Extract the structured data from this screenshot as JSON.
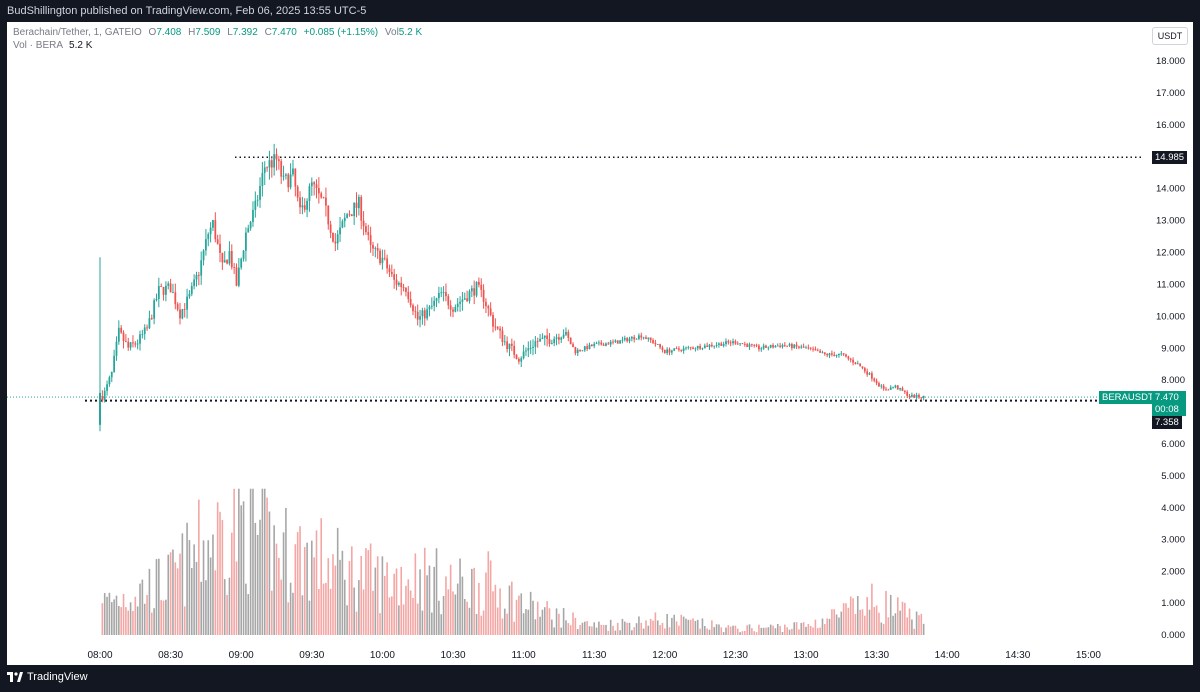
{
  "header": {
    "published_text": "BudShillington published on TradingView.com, Feb 06, 2025 13:55 UTC-5"
  },
  "legend": {
    "symbol": "Berachain/Tether, 1, GATEIO",
    "o_label": "O",
    "o": "7.408",
    "h_label": "H",
    "h": "7.509",
    "l_label": "L",
    "l": "7.392",
    "c_label": "C",
    "c": "7.470",
    "change": "+0.085 (+1.15%)",
    "vol_label": "Vol",
    "vol": "5.2 K",
    "vol_row_label": "Vol · BERA",
    "vol_row_value": "5.2 K"
  },
  "currency_button": "USDT",
  "price_tags": {
    "high_line": "14.985",
    "symbol_tag": "BERAUSDT",
    "last_price": "7.470",
    "countdown": "00:08",
    "low_line": "7.358"
  },
  "footer": {
    "brand": "TradingView"
  },
  "colors": {
    "up": "#26a69a",
    "down": "#ef5350",
    "up_vol": "#a6a6a6",
    "down_vol": "#f3a6a4",
    "background": "#ffffff",
    "tag_green": "#089981"
  },
  "chart_data": {
    "type": "candlestick",
    "price_axis_ticks": [
      "18.000",
      "17.000",
      "16.000",
      "15.000",
      "14.000",
      "13.000",
      "12.000",
      "11.000",
      "10.000",
      "9.000",
      "8.000",
      "7.000",
      "6.000"
    ],
    "volume_axis_ticks": [
      "5.000",
      "4.000",
      "3.000",
      "2.000",
      "1.000",
      "0.000"
    ],
    "x_ticks": [
      "08:00",
      "08:30",
      "09:00",
      "09:30",
      "10:00",
      "10:30",
      "11:00",
      "11:30",
      "12:00",
      "12:30",
      "13:00",
      "13:30",
      "14:00",
      "14:30",
      "15:00"
    ],
    "ylim": [
      6.0,
      18.0
    ],
    "volume_ylim": [
      0,
      5.0
    ],
    "horizontal_lines": [
      14.985,
      7.358
    ],
    "last_price": 7.47,
    "price_path": [
      {
        "t": "08:00",
        "p": 7.4
      },
      {
        "t": "08:02",
        "p": 7.6
      },
      {
        "t": "08:05",
        "p": 8.2
      },
      {
        "t": "08:08",
        "p": 9.5
      },
      {
        "t": "08:12",
        "p": 9.0
      },
      {
        "t": "08:16",
        "p": 9.2
      },
      {
        "t": "08:20",
        "p": 9.6
      },
      {
        "t": "08:25",
        "p": 10.8
      },
      {
        "t": "08:30",
        "p": 10.9
      },
      {
        "t": "08:34",
        "p": 10.1
      },
      {
        "t": "08:38",
        "p": 10.6
      },
      {
        "t": "08:42",
        "p": 11.4
      },
      {
        "t": "08:46",
        "p": 12.6
      },
      {
        "t": "08:48",
        "p": 12.9
      },
      {
        "t": "08:52",
        "p": 11.5
      },
      {
        "t": "08:55",
        "p": 12.0
      },
      {
        "t": "08:58",
        "p": 11.0
      },
      {
        "t": "09:02",
        "p": 12.6
      },
      {
        "t": "09:06",
        "p": 13.4
      },
      {
        "t": "09:10",
        "p": 14.7
      },
      {
        "t": "09:15",
        "p": 14.9
      },
      {
        "t": "09:18",
        "p": 14.2
      },
      {
        "t": "09:22",
        "p": 14.4
      },
      {
        "t": "09:25",
        "p": 13.2
      },
      {
        "t": "09:30",
        "p": 14.1
      },
      {
        "t": "09:35",
        "p": 13.5
      },
      {
        "t": "09:40",
        "p": 12.3
      },
      {
        "t": "09:45",
        "p": 13.2
      },
      {
        "t": "09:50",
        "p": 13.5
      },
      {
        "t": "09:55",
        "p": 12.1
      },
      {
        "t": "10:00",
        "p": 11.8
      },
      {
        "t": "10:05",
        "p": 11.1
      },
      {
        "t": "10:10",
        "p": 10.9
      },
      {
        "t": "10:15",
        "p": 9.9
      },
      {
        "t": "10:20",
        "p": 10.2
      },
      {
        "t": "10:25",
        "p": 10.7
      },
      {
        "t": "10:30",
        "p": 10.3
      },
      {
        "t": "10:35",
        "p": 10.6
      },
      {
        "t": "10:40",
        "p": 10.9
      },
      {
        "t": "10:43",
        "p": 10.6
      },
      {
        "t": "10:47",
        "p": 9.8
      },
      {
        "t": "10:52",
        "p": 9.2
      },
      {
        "t": "10:58",
        "p": 8.7
      },
      {
        "t": "11:05",
        "p": 9.2
      },
      {
        "t": "11:12",
        "p": 9.3
      },
      {
        "t": "11:17",
        "p": 9.5
      },
      {
        "t": "11:22",
        "p": 8.9
      },
      {
        "t": "11:30",
        "p": 9.1
      },
      {
        "t": "11:40",
        "p": 9.2
      },
      {
        "t": "11:50",
        "p": 9.4
      },
      {
        "t": "11:55",
        "p": 9.2
      },
      {
        "t": "12:00",
        "p": 8.9
      },
      {
        "t": "12:10",
        "p": 9.0
      },
      {
        "t": "12:20",
        "p": 9.1
      },
      {
        "t": "12:30",
        "p": 9.2
      },
      {
        "t": "12:40",
        "p": 9.0
      },
      {
        "t": "12:50",
        "p": 9.1
      },
      {
        "t": "13:00",
        "p": 9.0
      },
      {
        "t": "13:08",
        "p": 8.8
      },
      {
        "t": "13:15",
        "p": 8.8
      },
      {
        "t": "13:22",
        "p": 8.5
      },
      {
        "t": "13:28",
        "p": 8.1
      },
      {
        "t": "13:33",
        "p": 7.7
      },
      {
        "t": "13:38",
        "p": 7.8
      },
      {
        "t": "13:44",
        "p": 7.5
      },
      {
        "t": "13:50",
        "p": 7.47
      }
    ],
    "volume_profile": [
      {
        "t": "08:00",
        "v": 1.0
      },
      {
        "t": "08:30",
        "v": 1.8
      },
      {
        "t": "08:45",
        "v": 3.0
      },
      {
        "t": "09:00",
        "v": 3.8
      },
      {
        "t": "09:15",
        "v": 2.8
      },
      {
        "t": "09:30",
        "v": 2.6
      },
      {
        "t": "09:45",
        "v": 2.1
      },
      {
        "t": "10:00",
        "v": 1.8
      },
      {
        "t": "10:15",
        "v": 2.0
      },
      {
        "t": "10:30",
        "v": 1.6
      },
      {
        "t": "10:45",
        "v": 1.7
      },
      {
        "t": "11:00",
        "v": 1.0
      },
      {
        "t": "11:15",
        "v": 0.6
      },
      {
        "t": "11:30",
        "v": 0.3
      },
      {
        "t": "12:00",
        "v": 0.5
      },
      {
        "t": "12:30",
        "v": 0.2
      },
      {
        "t": "13:00",
        "v": 0.3
      },
      {
        "t": "13:30",
        "v": 1.1
      },
      {
        "t": "13:50",
        "v": 0.4
      }
    ]
  }
}
